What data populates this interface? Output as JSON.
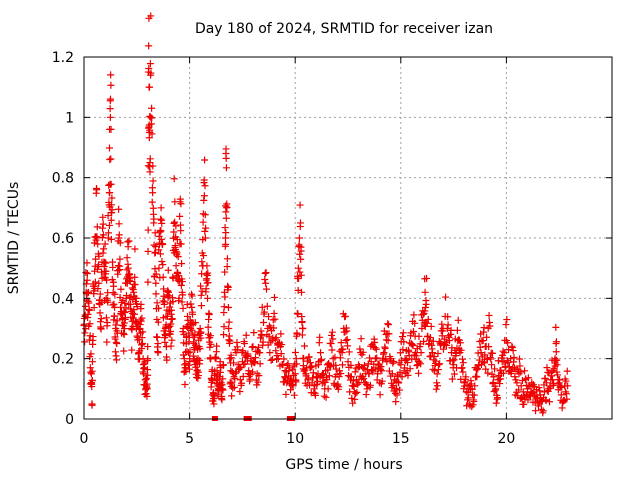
{
  "chart_data": {
    "type": "scatter",
    "title": "Day 180 of 2024, SRMTID for receiver izan",
    "xlabel": "GPS time / hours",
    "ylabel": "SRMTID / TECUs",
    "xlim": [
      0,
      25
    ],
    "ylim": [
      0,
      1.2
    ],
    "xticks": [
      0,
      5,
      10,
      15,
      20
    ],
    "xtick_labels": [
      "0",
      "5",
      "10",
      "15",
      "20"
    ],
    "yticks": [
      0,
      0.2,
      0.4,
      0.6,
      0.8,
      1.0,
      1.2
    ],
    "ytick_labels": [
      "0",
      "0.2",
      "0.4",
      "0.6",
      "0.8",
      "1",
      "1.2"
    ],
    "grid": true,
    "marker": "+",
    "color": "#ee0000",
    "series": [
      {
        "name": "SRMTID",
        "points": [
          [
            0.0,
            0.31
          ],
          [
            0.05,
            0.34
          ],
          [
            0.1,
            0.42
          ],
          [
            0.15,
            0.46
          ],
          [
            0.2,
            0.39
          ],
          [
            0.25,
            0.36
          ],
          [
            0.3,
            0.17
          ],
          [
            0.35,
            0.15
          ],
          [
            0.38,
            0.05
          ],
          [
            0.4,
            0.19
          ],
          [
            0.45,
            0.44
          ],
          [
            0.5,
            0.49
          ],
          [
            0.55,
            0.53
          ],
          [
            0.6,
            0.76
          ],
          [
            0.65,
            0.58
          ],
          [
            0.7,
            0.45
          ],
          [
            0.75,
            0.38
          ],
          [
            0.8,
            0.3
          ],
          [
            0.85,
            0.52
          ],
          [
            0.9,
            0.55
          ],
          [
            0.95,
            0.47
          ],
          [
            1.0,
            0.58
          ],
          [
            1.05,
            0.4
          ],
          [
            1.1,
            0.32
          ],
          [
            1.15,
            0.6
          ],
          [
            1.2,
            0.75
          ],
          [
            1.22,
            0.86
          ],
          [
            1.25,
            1.0
          ],
          [
            1.28,
            0.96
          ],
          [
            1.3,
            0.71
          ],
          [
            1.35,
            0.52
          ],
          [
            1.4,
            0.44
          ],
          [
            1.45,
            0.37
          ],
          [
            1.5,
            0.3
          ],
          [
            1.55,
            0.25
          ],
          [
            1.6,
            0.48
          ],
          [
            1.65,
            0.6
          ],
          [
            1.7,
            0.53
          ],
          [
            1.75,
            0.43
          ],
          [
            1.8,
            0.35
          ],
          [
            1.85,
            0.31
          ],
          [
            1.9,
            0.28
          ],
          [
            1.95,
            0.33
          ],
          [
            2.0,
            0.4
          ],
          [
            2.05,
            0.45
          ],
          [
            2.1,
            0.5
          ],
          [
            2.15,
            0.46
          ],
          [
            2.2,
            0.38
          ],
          [
            2.25,
            0.3
          ],
          [
            2.3,
            0.35
          ],
          [
            2.35,
            0.42
          ],
          [
            2.4,
            0.47
          ],
          [
            2.45,
            0.4
          ],
          [
            2.5,
            0.32
          ],
          [
            2.55,
            0.27
          ],
          [
            2.6,
            0.22
          ],
          [
            2.65,
            0.3
          ],
          [
            2.7,
            0.38
          ],
          [
            2.75,
            0.27
          ],
          [
            2.8,
            0.2
          ],
          [
            2.85,
            0.17
          ],
          [
            2.9,
            0.13
          ],
          [
            2.95,
            0.11
          ],
          [
            3.0,
            0.1
          ],
          [
            3.02,
            0.2
          ],
          [
            3.05,
            1.15
          ],
          [
            3.08,
            1.1
          ],
          [
            3.1,
            0.95
          ],
          [
            3.12,
            0.85
          ],
          [
            3.15,
            1.14
          ],
          [
            3.2,
            1.03
          ],
          [
            3.25,
            0.75
          ],
          [
            3.3,
            0.65
          ],
          [
            3.35,
            0.55
          ],
          [
            3.4,
            0.45
          ],
          [
            3.45,
            0.33
          ],
          [
            3.5,
            0.25
          ],
          [
            3.55,
            0.5
          ],
          [
            3.6,
            0.62
          ],
          [
            3.65,
            0.7
          ],
          [
            3.7,
            0.58
          ],
          [
            3.75,
            0.47
          ],
          [
            3.8,
            0.38
          ],
          [
            3.85,
            0.3
          ],
          [
            3.9,
            0.24
          ],
          [
            3.95,
            0.34
          ],
          [
            4.0,
            0.42
          ],
          [
            4.05,
            0.36
          ],
          [
            4.1,
            0.29
          ],
          [
            4.15,
            0.33
          ],
          [
            4.2,
            0.47
          ],
          [
            4.25,
            0.62
          ],
          [
            4.3,
            0.72
          ],
          [
            4.35,
            0.64
          ],
          [
            4.4,
            0.55
          ],
          [
            4.45,
            0.46
          ],
          [
            4.5,
            0.4
          ],
          [
            4.55,
            0.72
          ],
          [
            4.6,
            0.58
          ],
          [
            4.65,
            0.42
          ],
          [
            4.7,
            0.3
          ],
          [
            4.75,
            0.2
          ],
          [
            4.8,
            0.17
          ],
          [
            4.85,
            0.27
          ],
          [
            4.9,
            0.34
          ],
          [
            4.95,
            0.22
          ],
          [
            5.0,
            0.2
          ],
          [
            5.05,
            0.3
          ],
          [
            5.1,
            0.37
          ],
          [
            5.15,
            0.32
          ],
          [
            5.2,
            0.25
          ],
          [
            5.25,
            0.28
          ],
          [
            5.3,
            0.19
          ],
          [
            5.35,
            0.16
          ],
          [
            5.4,
            0.2
          ],
          [
            5.45,
            0.24
          ],
          [
            5.5,
            0.3
          ],
          [
            5.55,
            0.41
          ],
          [
            5.6,
            0.55
          ],
          [
            5.65,
            0.68
          ],
          [
            5.7,
            0.74
          ],
          [
            5.75,
            0.6
          ],
          [
            5.8,
            0.48
          ],
          [
            5.85,
            0.4
          ],
          [
            5.9,
            0.33
          ],
          [
            5.95,
            0.27
          ],
          [
            6.0,
            0.2
          ],
          [
            6.05,
            0.13
          ],
          [
            6.1,
            0.08
          ],
          [
            6.15,
            0.05
          ],
          [
            6.2,
            0.15
          ],
          [
            6.25,
            0.2
          ],
          [
            6.3,
            0.16
          ],
          [
            6.35,
            0.11
          ],
          [
            6.4,
            0.14
          ],
          [
            6.45,
            0.19
          ],
          [
            6.5,
            0.12
          ],
          [
            6.55,
            0.1
          ],
          [
            6.6,
            0.18
          ],
          [
            6.65,
            0.42
          ],
          [
            6.7,
            0.6
          ],
          [
            6.72,
            0.88
          ],
          [
            6.75,
            0.7
          ],
          [
            6.8,
            0.44
          ],
          [
            6.85,
            0.3
          ],
          [
            6.9,
            0.2
          ],
          [
            6.95,
            0.16
          ],
          [
            7.0,
            0.12
          ],
          [
            7.1,
            0.14
          ],
          [
            7.2,
            0.22
          ],
          [
            7.3,
            0.18
          ],
          [
            7.4,
            0.13
          ],
          [
            7.5,
            0.19
          ],
          [
            7.6,
            0.25
          ],
          [
            7.7,
            0.21
          ],
          [
            7.8,
            0.16
          ],
          [
            7.9,
            0.2
          ],
          [
            8.0,
            0.24
          ],
          [
            8.1,
            0.19
          ],
          [
            8.2,
            0.15
          ],
          [
            8.3,
            0.22
          ],
          [
            8.4,
            0.28
          ],
          [
            8.5,
            0.32
          ],
          [
            8.6,
            0.45
          ],
          [
            8.7,
            0.3
          ],
          [
            8.8,
            0.22
          ],
          [
            8.9,
            0.26
          ],
          [
            9.0,
            0.35
          ],
          [
            9.1,
            0.27
          ],
          [
            9.2,
            0.2
          ],
          [
            9.3,
            0.24
          ],
          [
            9.4,
            0.18
          ],
          [
            9.5,
            0.14
          ],
          [
            9.6,
            0.12
          ],
          [
            9.7,
            0.16
          ],
          [
            9.8,
            0.13
          ],
          [
            9.9,
            0.11
          ],
          [
            10.0,
            0.15
          ],
          [
            10.05,
            0.2
          ],
          [
            10.1,
            0.35
          ],
          [
            10.15,
            0.5
          ],
          [
            10.2,
            0.6
          ],
          [
            10.25,
            0.65
          ],
          [
            10.3,
            0.42
          ],
          [
            10.35,
            0.3
          ],
          [
            10.4,
            0.2
          ],
          [
            10.5,
            0.15
          ],
          [
            10.6,
            0.13
          ],
          [
            10.7,
            0.17
          ],
          [
            10.8,
            0.12
          ],
          [
            10.9,
            0.1
          ],
          [
            11.0,
            0.14
          ],
          [
            11.1,
            0.18
          ],
          [
            11.2,
            0.22
          ],
          [
            11.3,
            0.15
          ],
          [
            11.4,
            0.1
          ],
          [
            11.5,
            0.13
          ],
          [
            11.6,
            0.18
          ],
          [
            11.7,
            0.25
          ],
          [
            11.8,
            0.2
          ],
          [
            11.9,
            0.14
          ],
          [
            12.0,
            0.11
          ],
          [
            12.1,
            0.16
          ],
          [
            12.2,
            0.23
          ],
          [
            12.3,
            0.3
          ],
          [
            12.4,
            0.26
          ],
          [
            12.5,
            0.19
          ],
          [
            12.6,
            0.14
          ],
          [
            12.7,
            0.11
          ],
          [
            12.8,
            0.09
          ],
          [
            12.9,
            0.13
          ],
          [
            13.0,
            0.18
          ],
          [
            13.1,
            0.22
          ],
          [
            13.2,
            0.17
          ],
          [
            13.3,
            0.12
          ],
          [
            13.4,
            0.1
          ],
          [
            13.5,
            0.15
          ],
          [
            13.6,
            0.19
          ],
          [
            13.7,
            0.24
          ],
          [
            13.8,
            0.2
          ],
          [
            13.9,
            0.15
          ],
          [
            14.0,
            0.12
          ],
          [
            14.1,
            0.16
          ],
          [
            14.2,
            0.22
          ],
          [
            14.3,
            0.28
          ],
          [
            14.4,
            0.26
          ],
          [
            14.5,
            0.2
          ],
          [
            14.6,
            0.15
          ],
          [
            14.7,
            0.13
          ],
          [
            14.8,
            0.1
          ],
          [
            14.9,
            0.12
          ],
          [
            15.0,
            0.18
          ],
          [
            15.1,
            0.23
          ],
          [
            15.2,
            0.2
          ],
          [
            15.3,
            0.16
          ],
          [
            15.4,
            0.21
          ],
          [
            15.5,
            0.25
          ],
          [
            15.6,
            0.29
          ],
          [
            15.7,
            0.22
          ],
          [
            15.8,
            0.18
          ],
          [
            15.9,
            0.24
          ],
          [
            16.0,
            0.3
          ],
          [
            16.1,
            0.35
          ],
          [
            16.15,
            0.42
          ],
          [
            16.2,
            0.38
          ],
          [
            16.3,
            0.33
          ],
          [
            16.4,
            0.27
          ],
          [
            16.5,
            0.22
          ],
          [
            16.6,
            0.16
          ],
          [
            16.7,
            0.12
          ],
          [
            16.8,
            0.18
          ],
          [
            16.9,
            0.25
          ],
          [
            17.0,
            0.3
          ],
          [
            17.1,
            0.34
          ],
          [
            17.2,
            0.3
          ],
          [
            17.3,
            0.26
          ],
          [
            17.4,
            0.22
          ],
          [
            17.5,
            0.18
          ],
          [
            17.6,
            0.21
          ],
          [
            17.7,
            0.26
          ],
          [
            17.8,
            0.22
          ],
          [
            17.9,
            0.17
          ],
          [
            18.0,
            0.12
          ],
          [
            18.1,
            0.09
          ],
          [
            18.2,
            0.07
          ],
          [
            18.3,
            0.1
          ],
          [
            18.4,
            0.08
          ],
          [
            18.5,
            0.11
          ],
          [
            18.6,
            0.14
          ],
          [
            18.7,
            0.18
          ],
          [
            18.8,
            0.22
          ],
          [
            18.9,
            0.26
          ],
          [
            19.0,
            0.24
          ],
          [
            19.1,
            0.2
          ],
          [
            19.2,
            0.32
          ],
          [
            19.3,
            0.18
          ],
          [
            19.4,
            0.14
          ],
          [
            19.5,
            0.1
          ],
          [
            19.6,
            0.13
          ],
          [
            19.7,
            0.16
          ],
          [
            19.8,
            0.19
          ],
          [
            19.9,
            0.22
          ],
          [
            20.0,
            0.26
          ],
          [
            20.1,
            0.23
          ],
          [
            20.2,
            0.2
          ],
          [
            20.3,
            0.17
          ],
          [
            20.4,
            0.14
          ],
          [
            20.5,
            0.12
          ],
          [
            20.6,
            0.15
          ],
          [
            20.7,
            0.11
          ],
          [
            20.8,
            0.09
          ],
          [
            20.9,
            0.13
          ],
          [
            21.0,
            0.1
          ],
          [
            21.1,
            0.08
          ],
          [
            21.2,
            0.12
          ],
          [
            21.3,
            0.09
          ],
          [
            21.4,
            0.07
          ],
          [
            21.5,
            0.05
          ],
          [
            21.6,
            0.08
          ],
          [
            21.7,
            0.06
          ],
          [
            21.8,
            0.09
          ],
          [
            21.9,
            0.12
          ],
          [
            22.0,
            0.1
          ],
          [
            22.1,
            0.13
          ],
          [
            22.2,
            0.16
          ],
          [
            22.3,
            0.2
          ],
          [
            22.35,
            0.25
          ],
          [
            22.4,
            0.18
          ],
          [
            22.5,
            0.12
          ],
          [
            22.6,
            0.08
          ],
          [
            22.7,
            0.06
          ],
          [
            22.8,
            0.09
          ],
          [
            22.9,
            0.11
          ]
        ]
      }
    ],
    "axis_markers_at_zero": [
      6.2,
      7.7,
      7.8,
      9.75,
      9.85
    ]
  }
}
